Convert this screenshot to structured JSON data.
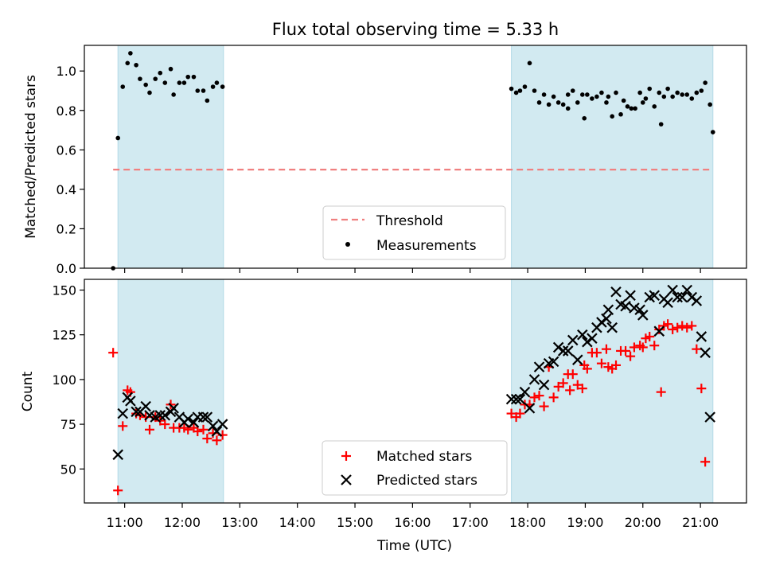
{
  "title": "Flux total observing time = 5.33 h",
  "chart_data": [
    {
      "type": "scatter",
      "panel": "top",
      "xlabel": "",
      "ylabel": "Matched/Predicted stars",
      "ylim": [
        0,
        1.13
      ],
      "yticks": [
        "0.0",
        "0.2",
        "0.4",
        "0.6",
        "0.8",
        "1.0"
      ],
      "xlim": [
        "10:18",
        "21:48"
      ],
      "shaded_ranges": [
        [
          "10:53",
          "12:43"
        ],
        [
          "17:43",
          "21:13"
        ]
      ],
      "shade_color": "#add8e6",
      "threshold": {
        "name": "Threshold",
        "value": 0.5,
        "color": "#f08080",
        "style": "dashed"
      },
      "series": [
        {
          "name": "Measurements",
          "marker": "dot",
          "color": "#000000",
          "points": [
            [
              "10:48",
              0.0
            ],
            [
              "10:53",
              0.66
            ],
            [
              "10:58",
              0.92
            ],
            [
              "11:03",
              1.04
            ],
            [
              "11:06",
              1.09
            ],
            [
              "11:12",
              1.03
            ],
            [
              "11:16",
              0.96
            ],
            [
              "11:22",
              0.93
            ],
            [
              "11:26",
              0.89
            ],
            [
              "11:32",
              0.96
            ],
            [
              "11:37",
              0.99
            ],
            [
              "11:42",
              0.94
            ],
            [
              "11:48",
              1.01
            ],
            [
              "11:51",
              0.88
            ],
            [
              "11:57",
              0.94
            ],
            [
              "12:02",
              0.94
            ],
            [
              "12:06",
              0.97
            ],
            [
              "12:12",
              0.97
            ],
            [
              "12:16",
              0.9
            ],
            [
              "12:22",
              0.9
            ],
            [
              "12:26",
              0.85
            ],
            [
              "12:32",
              0.92
            ],
            [
              "12:36",
              0.94
            ],
            [
              "12:42",
              0.92
            ],
            [
              "17:43",
              0.91
            ],
            [
              "17:48",
              0.89
            ],
            [
              "17:52",
              0.9
            ],
            [
              "17:57",
              0.92
            ],
            [
              "18:02",
              1.04
            ],
            [
              "18:07",
              0.9
            ],
            [
              "18:12",
              0.84
            ],
            [
              "18:17",
              0.88
            ],
            [
              "18:22",
              0.83
            ],
            [
              "18:27",
              0.87
            ],
            [
              "18:32",
              0.84
            ],
            [
              "18:37",
              0.83
            ],
            [
              "18:42",
              0.88
            ],
            [
              "18:42",
              0.81
            ],
            [
              "18:47",
              0.9
            ],
            [
              "18:52",
              0.84
            ],
            [
              "18:57",
              0.88
            ],
            [
              "18:59",
              0.76
            ],
            [
              "19:02",
              0.88
            ],
            [
              "19:07",
              0.86
            ],
            [
              "19:12",
              0.87
            ],
            [
              "19:17",
              0.89
            ],
            [
              "19:22",
              0.84
            ],
            [
              "19:24",
              0.87
            ],
            [
              "19:28",
              0.77
            ],
            [
              "19:32",
              0.89
            ],
            [
              "19:37",
              0.78
            ],
            [
              "19:40",
              0.85
            ],
            [
              "19:44",
              0.82
            ],
            [
              "19:48",
              0.81
            ],
            [
              "19:52",
              0.81
            ],
            [
              "19:57",
              0.89
            ],
            [
              "20:00",
              0.84
            ],
            [
              "20:03",
              0.86
            ],
            [
              "20:07",
              0.91
            ],
            [
              "20:12",
              0.82
            ],
            [
              "20:17",
              0.89
            ],
            [
              "20:19",
              0.73
            ],
            [
              "20:22",
              0.87
            ],
            [
              "20:26",
              0.91
            ],
            [
              "20:31",
              0.87
            ],
            [
              "20:36",
              0.89
            ],
            [
              "20:41",
              0.88
            ],
            [
              "20:46",
              0.88
            ],
            [
              "20:51",
              0.86
            ],
            [
              "20:56",
              0.89
            ],
            [
              "21:01",
              0.9
            ],
            [
              "21:05",
              0.94
            ],
            [
              "21:10",
              0.83
            ],
            [
              "21:13",
              0.69
            ]
          ]
        }
      ],
      "legend": {
        "placement": "lower center",
        "entries": [
          "Threshold",
          "Measurements"
        ]
      }
    },
    {
      "type": "scatter",
      "panel": "bottom",
      "xlabel": "Time (UTC)",
      "ylabel": "Count",
      "ylim": [
        31,
        156
      ],
      "yticks": [
        "50",
        "75",
        "100",
        "125",
        "150"
      ],
      "xlim": [
        "10:18",
        "21:48"
      ],
      "xticks": [
        "11:00",
        "12:00",
        "13:00",
        "14:00",
        "15:00",
        "16:00",
        "17:00",
        "18:00",
        "19:00",
        "20:00",
        "21:00"
      ],
      "shaded_ranges": [
        [
          "10:53",
          "12:43"
        ],
        [
          "17:43",
          "21:13"
        ]
      ],
      "shade_color": "#add8e6",
      "series": [
        {
          "name": "Matched stars",
          "marker": "plus",
          "color": "#ff0000",
          "points": [
            [
              "10:48",
              115
            ],
            [
              "10:53",
              38
            ],
            [
              "10:58",
              74
            ],
            [
              "11:03",
              94
            ],
            [
              "11:06",
              93
            ],
            [
              "11:12",
              81
            ],
            [
              "11:16",
              80
            ],
            [
              "11:22",
              79
            ],
            [
              "11:26",
              72
            ],
            [
              "11:32",
              79
            ],
            [
              "11:37",
              77
            ],
            [
              "11:42",
              75
            ],
            [
              "11:48",
              86
            ],
            [
              "11:51",
              73
            ],
            [
              "11:57",
              73
            ],
            [
              "12:02",
              73
            ],
            [
              "12:06",
              72
            ],
            [
              "12:12",
              73
            ],
            [
              "12:16",
              71
            ],
            [
              "12:22",
              72
            ],
            [
              "12:26",
              67
            ],
            [
              "12:32",
              70
            ],
            [
              "12:36",
              66
            ],
            [
              "12:42",
              69
            ],
            [
              "17:43",
              81
            ],
            [
              "17:48",
              79
            ],
            [
              "17:52",
              81
            ],
            [
              "17:57",
              86
            ],
            [
              "18:02",
              86
            ],
            [
              "18:07",
              90
            ],
            [
              "18:12",
              91
            ],
            [
              "18:17",
              85
            ],
            [
              "18:22",
              107
            ],
            [
              "18:27",
              90
            ],
            [
              "18:32",
              96
            ],
            [
              "18:37",
              98
            ],
            [
              "18:42",
              103
            ],
            [
              "18:44",
              94
            ],
            [
              "18:47",
              103
            ],
            [
              "18:52",
              97
            ],
            [
              "18:57",
              95
            ],
            [
              "18:59",
              108
            ],
            [
              "19:02",
              106
            ],
            [
              "19:07",
              115
            ],
            [
              "19:12",
              115
            ],
            [
              "19:17",
              109
            ],
            [
              "19:22",
              117
            ],
            [
              "19:24",
              107
            ],
            [
              "19:28",
              106
            ],
            [
              "19:32",
              108
            ],
            [
              "19:37",
              116
            ],
            [
              "19:42",
              116
            ],
            [
              "19:47",
              113
            ],
            [
              "19:51",
              118
            ],
            [
              "19:57",
              119
            ],
            [
              "20:00",
              118
            ],
            [
              "20:03",
              123
            ],
            [
              "20:07",
              124
            ],
            [
              "20:12",
              119
            ],
            [
              "20:17",
              128
            ],
            [
              "20:19",
              93
            ],
            [
              "20:22",
              130
            ],
            [
              "20:26",
              131
            ],
            [
              "20:31",
              128
            ],
            [
              "20:36",
              129
            ],
            [
              "20:41",
              130
            ],
            [
              "20:46",
              129
            ],
            [
              "20:51",
              130
            ],
            [
              "20:56",
              117
            ],
            [
              "21:01",
              95
            ],
            [
              "21:05",
              54
            ]
          ]
        },
        {
          "name": "Predicted stars",
          "marker": "x",
          "color": "#000000",
          "points": [
            [
              "10:53",
              58
            ],
            [
              "10:58",
              81
            ],
            [
              "11:03",
              90
            ],
            [
              "11:06",
              88
            ],
            [
              "11:12",
              82
            ],
            [
              "11:16",
              82
            ],
            [
              "11:22",
              85
            ],
            [
              "11:26",
              80
            ],
            [
              "11:32",
              79
            ],
            [
              "11:37",
              80
            ],
            [
              "11:42",
              80
            ],
            [
              "11:48",
              82
            ],
            [
              "11:51",
              84
            ],
            [
              "11:57",
              79
            ],
            [
              "12:02",
              76
            ],
            [
              "12:06",
              78
            ],
            [
              "12:12",
              76
            ],
            [
              "12:16",
              79
            ],
            [
              "12:22",
              79
            ],
            [
              "12:26",
              79
            ],
            [
              "12:32",
              74
            ],
            [
              "12:36",
              71
            ],
            [
              "12:42",
              75
            ],
            [
              "17:43",
              89
            ],
            [
              "17:48",
              89
            ],
            [
              "17:52",
              89
            ],
            [
              "17:57",
              93
            ],
            [
              "18:02",
              84
            ],
            [
              "18:07",
              100
            ],
            [
              "18:12",
              107
            ],
            [
              "18:17",
              97
            ],
            [
              "18:22",
              109
            ],
            [
              "18:27",
              110
            ],
            [
              "18:32",
              118
            ],
            [
              "18:37",
              116
            ],
            [
              "18:42",
              116
            ],
            [
              "18:47",
              122
            ],
            [
              "18:52",
              111
            ],
            [
              "18:57",
              125
            ],
            [
              "19:02",
              121
            ],
            [
              "19:07",
              123
            ],
            [
              "19:12",
              129
            ],
            [
              "19:17",
              132
            ],
            [
              "19:22",
              134
            ],
            [
              "19:24",
              139
            ],
            [
              "19:28",
              129
            ],
            [
              "19:32",
              149
            ],
            [
              "19:37",
              142
            ],
            [
              "19:42",
              141
            ],
            [
              "19:47",
              147
            ],
            [
              "19:51",
              140
            ],
            [
              "19:57",
              139
            ],
            [
              "20:00",
              136
            ],
            [
              "20:07",
              146
            ],
            [
              "20:12",
              147
            ],
            [
              "20:17",
              127
            ],
            [
              "20:22",
              145
            ],
            [
              "20:26",
              143
            ],
            [
              "20:31",
              150
            ],
            [
              "20:36",
              146
            ],
            [
              "20:41",
              146
            ],
            [
              "20:46",
              150
            ],
            [
              "20:51",
              146
            ],
            [
              "20:56",
              144
            ],
            [
              "21:01",
              124
            ],
            [
              "21:05",
              115
            ],
            [
              "21:10",
              79
            ]
          ]
        }
      ],
      "legend": {
        "placement": "lower center",
        "entries": [
          "Matched stars",
          "Predicted stars"
        ]
      }
    }
  ]
}
